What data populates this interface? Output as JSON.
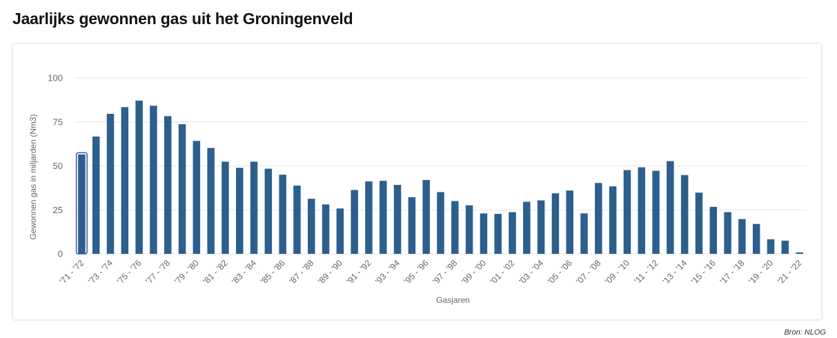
{
  "title": "Jaarlijks gewonnen gas uit het Groningenveld",
  "source": "Bron: NLOG",
  "colors": {
    "bar": "#2c5f8e",
    "highlight_outline": "#3355aa",
    "grid": "#e6e6e6"
  },
  "chart_data": {
    "type": "bar",
    "title": "Jaarlijks gewonnen gas uit het Groningenveld",
    "xlabel": "Gasjaren",
    "ylabel": "Gewonnen gas in miljarden (Nm3)",
    "ylim": [
      0,
      100
    ],
    "yticks": [
      0,
      25,
      50,
      75,
      100
    ],
    "grid": true,
    "highlighted_index": 0,
    "tick_labels": [
      "'71 - '72",
      "'73 - '74",
      "'75 - '76",
      "'77 - '78",
      "'79 - '80",
      "'81 - '82",
      "'83 - '84",
      "'85 - '86",
      "'87 - '88",
      "'89 - '90",
      "'91 - '92",
      "'93 - '94",
      "'95 - '96",
      "'97 - '98",
      "'99 - '00",
      "'01 - '02",
      "'03 - '04",
      "'05 - '06",
      "'07 - '08",
      "'09 - '10",
      "'11 - '12",
      "'13 - '14",
      "'15 - '16",
      "'17 - '18",
      "'19 - '20",
      "'21 - '22"
    ],
    "values": [
      56.5,
      66.7,
      79.6,
      83.4,
      87.1,
      84.2,
      78.3,
      73.7,
      64.2,
      60.2,
      52.4,
      48.9,
      52.4,
      48.4,
      45.0,
      38.8,
      31.3,
      28.1,
      25.8,
      36.3,
      41.2,
      41.5,
      39.2,
      32.2,
      42.0,
      35.1,
      30.0,
      27.6,
      23.0,
      22.7,
      23.7,
      29.6,
      30.4,
      34.4,
      36.0,
      23.0,
      40.3,
      38.4,
      47.6,
      49.2,
      47.2,
      52.7,
      44.8,
      34.8,
      26.7,
      23.7,
      19.8,
      17.0,
      8.3,
      7.5,
      0.8
    ]
  }
}
